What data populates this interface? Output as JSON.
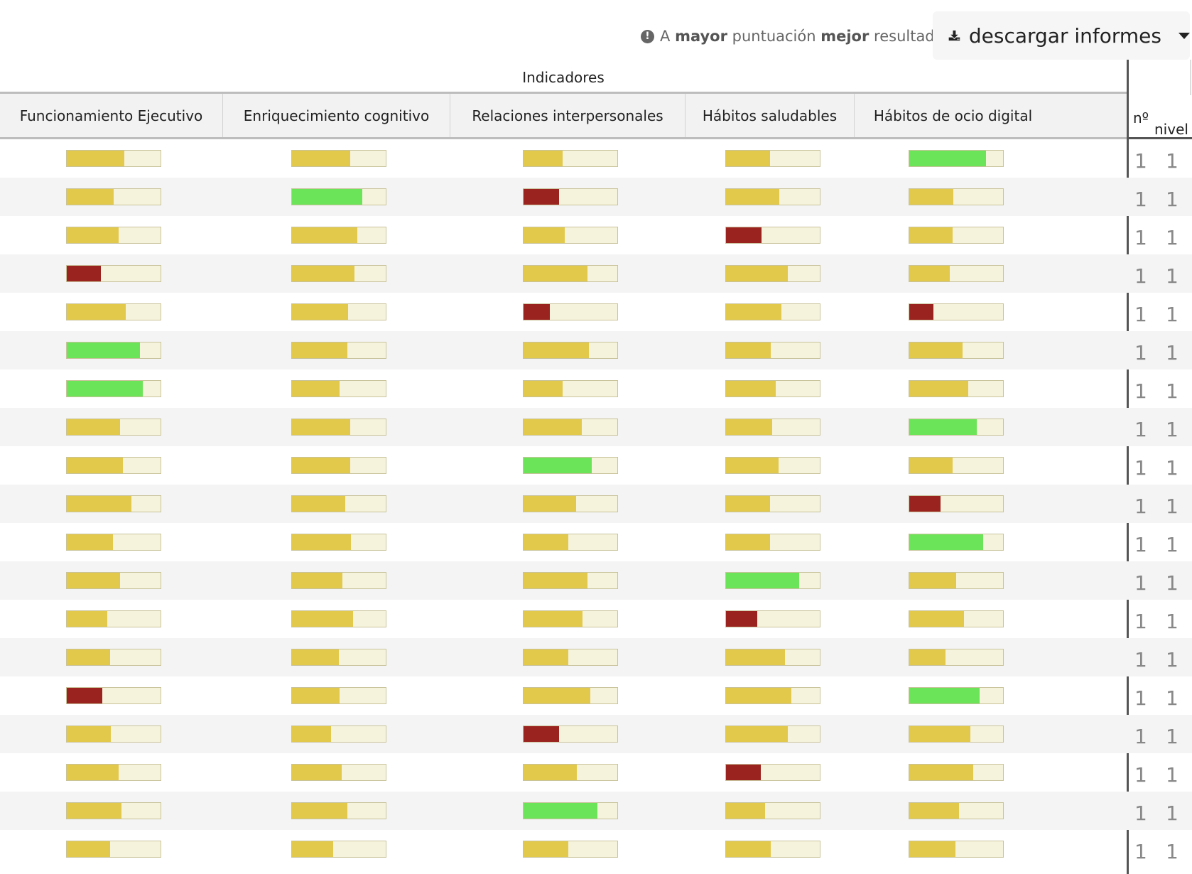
{
  "toolbar": {
    "hint_prefix": "A",
    "hint_bold1": "mayor",
    "hint_mid": "puntuación",
    "hint_bold2": "mejor",
    "hint_suffix": "resultado",
    "download_label": "descargar informes",
    "info_icon": "info-circle-icon",
    "download_icon": "download-icon"
  },
  "table": {
    "group_header": "Indicadores",
    "columns": [
      "Funcionamiento Ejecutivo",
      "Enriquecimiento cognitivo",
      "Relaciones interpersonales",
      "Hábitos saludables",
      "Hábitos de ocio digital"
    ],
    "side_headers": {
      "number": "nº",
      "level": "nivel"
    },
    "colors": {
      "medium": "#e3c94b",
      "high": "#6ce45a",
      "low": "#9b231f",
      "track": "#f5f3dc"
    },
    "rows": [
      {
        "scores": [
          {
            "v": 0.61,
            "s": "medium"
          },
          {
            "v": 0.62,
            "s": "medium"
          },
          {
            "v": 0.42,
            "s": "medium"
          },
          {
            "v": 0.47,
            "s": "medium"
          },
          {
            "v": 0.82,
            "s": "high"
          }
        ],
        "n": "1",
        "level": "1"
      },
      {
        "scores": [
          {
            "v": 0.5,
            "s": "medium"
          },
          {
            "v": 0.75,
            "s": "high"
          },
          {
            "v": 0.38,
            "s": "low"
          },
          {
            "v": 0.57,
            "s": "medium"
          },
          {
            "v": 0.47,
            "s": "medium"
          }
        ],
        "n": "1",
        "level": "1"
      },
      {
        "scores": [
          {
            "v": 0.55,
            "s": "medium"
          },
          {
            "v": 0.7,
            "s": "medium"
          },
          {
            "v": 0.44,
            "s": "medium"
          },
          {
            "v": 0.38,
            "s": "low"
          },
          {
            "v": 0.46,
            "s": "medium"
          }
        ],
        "n": "1",
        "level": "1"
      },
      {
        "scores": [
          {
            "v": 0.36,
            "s": "low"
          },
          {
            "v": 0.67,
            "s": "medium"
          },
          {
            "v": 0.68,
            "s": "medium"
          },
          {
            "v": 0.66,
            "s": "medium"
          },
          {
            "v": 0.43,
            "s": "medium"
          }
        ],
        "n": "1",
        "level": "1"
      },
      {
        "scores": [
          {
            "v": 0.63,
            "s": "medium"
          },
          {
            "v": 0.6,
            "s": "medium"
          },
          {
            "v": 0.28,
            "s": "low"
          },
          {
            "v": 0.59,
            "s": "medium"
          },
          {
            "v": 0.26,
            "s": "low"
          }
        ],
        "n": "1",
        "level": "1"
      },
      {
        "scores": [
          {
            "v": 0.78,
            "s": "high"
          },
          {
            "v": 0.59,
            "s": "medium"
          },
          {
            "v": 0.7,
            "s": "medium"
          },
          {
            "v": 0.48,
            "s": "medium"
          },
          {
            "v": 0.57,
            "s": "medium"
          }
        ],
        "n": "1",
        "level": "1"
      },
      {
        "scores": [
          {
            "v": 0.81,
            "s": "high"
          },
          {
            "v": 0.51,
            "s": "medium"
          },
          {
            "v": 0.42,
            "s": "medium"
          },
          {
            "v": 0.53,
            "s": "medium"
          },
          {
            "v": 0.63,
            "s": "medium"
          }
        ],
        "n": "1",
        "level": "1"
      },
      {
        "scores": [
          {
            "v": 0.57,
            "s": "medium"
          },
          {
            "v": 0.62,
            "s": "medium"
          },
          {
            "v": 0.62,
            "s": "medium"
          },
          {
            "v": 0.49,
            "s": "medium"
          },
          {
            "v": 0.72,
            "s": "high"
          }
        ],
        "n": "1",
        "level": "1"
      },
      {
        "scores": [
          {
            "v": 0.6,
            "s": "medium"
          },
          {
            "v": 0.62,
            "s": "medium"
          },
          {
            "v": 0.73,
            "s": "high"
          },
          {
            "v": 0.56,
            "s": "medium"
          },
          {
            "v": 0.46,
            "s": "medium"
          }
        ],
        "n": "1",
        "level": "1"
      },
      {
        "scores": [
          {
            "v": 0.69,
            "s": "medium"
          },
          {
            "v": 0.57,
            "s": "medium"
          },
          {
            "v": 0.56,
            "s": "medium"
          },
          {
            "v": 0.47,
            "s": "medium"
          },
          {
            "v": 0.33,
            "s": "low"
          }
        ],
        "n": "1",
        "level": "1"
      },
      {
        "scores": [
          {
            "v": 0.49,
            "s": "medium"
          },
          {
            "v": 0.63,
            "s": "medium"
          },
          {
            "v": 0.48,
            "s": "medium"
          },
          {
            "v": 0.47,
            "s": "medium"
          },
          {
            "v": 0.79,
            "s": "high"
          }
        ],
        "n": "1",
        "level": "1"
      },
      {
        "scores": [
          {
            "v": 0.57,
            "s": "medium"
          },
          {
            "v": 0.54,
            "s": "medium"
          },
          {
            "v": 0.68,
            "s": "medium"
          },
          {
            "v": 0.78,
            "s": "high"
          },
          {
            "v": 0.5,
            "s": "medium"
          }
        ],
        "n": "1",
        "level": "1"
      },
      {
        "scores": [
          {
            "v": 0.43,
            "s": "medium"
          },
          {
            "v": 0.65,
            "s": "medium"
          },
          {
            "v": 0.63,
            "s": "medium"
          },
          {
            "v": 0.33,
            "s": "low"
          },
          {
            "v": 0.58,
            "s": "medium"
          }
        ],
        "n": "1",
        "level": "1"
      },
      {
        "scores": [
          {
            "v": 0.46,
            "s": "medium"
          },
          {
            "v": 0.5,
            "s": "medium"
          },
          {
            "v": 0.48,
            "s": "medium"
          },
          {
            "v": 0.63,
            "s": "medium"
          },
          {
            "v": 0.39,
            "s": "medium"
          }
        ],
        "n": "1",
        "level": "1"
      },
      {
        "scores": [
          {
            "v": 0.38,
            "s": "low"
          },
          {
            "v": 0.51,
            "s": "medium"
          },
          {
            "v": 0.71,
            "s": "medium"
          },
          {
            "v": 0.7,
            "s": "medium"
          },
          {
            "v": 0.75,
            "s": "high"
          }
        ],
        "n": "1",
        "level": "1"
      },
      {
        "scores": [
          {
            "v": 0.47,
            "s": "medium"
          },
          {
            "v": 0.42,
            "s": "medium"
          },
          {
            "v": 0.38,
            "s": "low"
          },
          {
            "v": 0.66,
            "s": "medium"
          },
          {
            "v": 0.65,
            "s": "medium"
          }
        ],
        "n": "1",
        "level": "1"
      },
      {
        "scores": [
          {
            "v": 0.55,
            "s": "medium"
          },
          {
            "v": 0.53,
            "s": "medium"
          },
          {
            "v": 0.57,
            "s": "medium"
          },
          {
            "v": 0.37,
            "s": "low"
          },
          {
            "v": 0.68,
            "s": "medium"
          }
        ],
        "n": "1",
        "level": "1"
      },
      {
        "scores": [
          {
            "v": 0.58,
            "s": "medium"
          },
          {
            "v": 0.59,
            "s": "medium"
          },
          {
            "v": 0.79,
            "s": "high"
          },
          {
            "v": 0.42,
            "s": "medium"
          },
          {
            "v": 0.53,
            "s": "medium"
          }
        ],
        "n": "1",
        "level": "1"
      },
      {
        "scores": [
          {
            "v": 0.46,
            "s": "medium"
          },
          {
            "v": 0.44,
            "s": "medium"
          },
          {
            "v": 0.48,
            "s": "medium"
          },
          {
            "v": 0.48,
            "s": "medium"
          },
          {
            "v": 0.49,
            "s": "medium"
          }
        ],
        "n": "1",
        "level": "1"
      }
    ]
  }
}
